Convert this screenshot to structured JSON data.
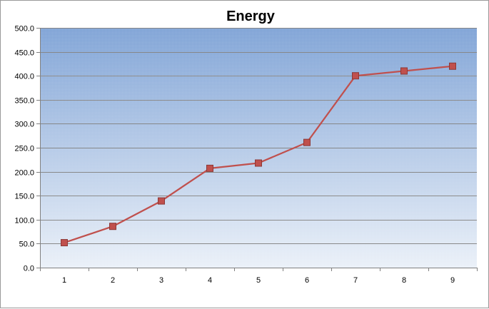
{
  "chart_data": {
    "type": "line",
    "title": "Energy",
    "xlabel": "",
    "ylabel": "",
    "categories": [
      "1",
      "2",
      "3",
      "4",
      "5",
      "6",
      "7",
      "8",
      "9"
    ],
    "series": [
      {
        "values": [
          52,
          86,
          139,
          207,
          218,
          261,
          400,
          410,
          420
        ]
      }
    ],
    "ylim": [
      0,
      500
    ],
    "yticks": [
      "0.0",
      "50.0",
      "100.0",
      "150.0",
      "200.0",
      "250.0",
      "300.0",
      "350.0",
      "400.0",
      "450.0",
      "500.0"
    ],
    "grid": true,
    "legend": "none",
    "colors": {
      "line": "#c0504d",
      "marker_fill": "#c0504d",
      "marker_stroke": "#8c3836",
      "plot_top": "#7fa3d6",
      "plot_bottom": "#eaf0f8",
      "gridline": "#8a8a8a"
    }
  }
}
